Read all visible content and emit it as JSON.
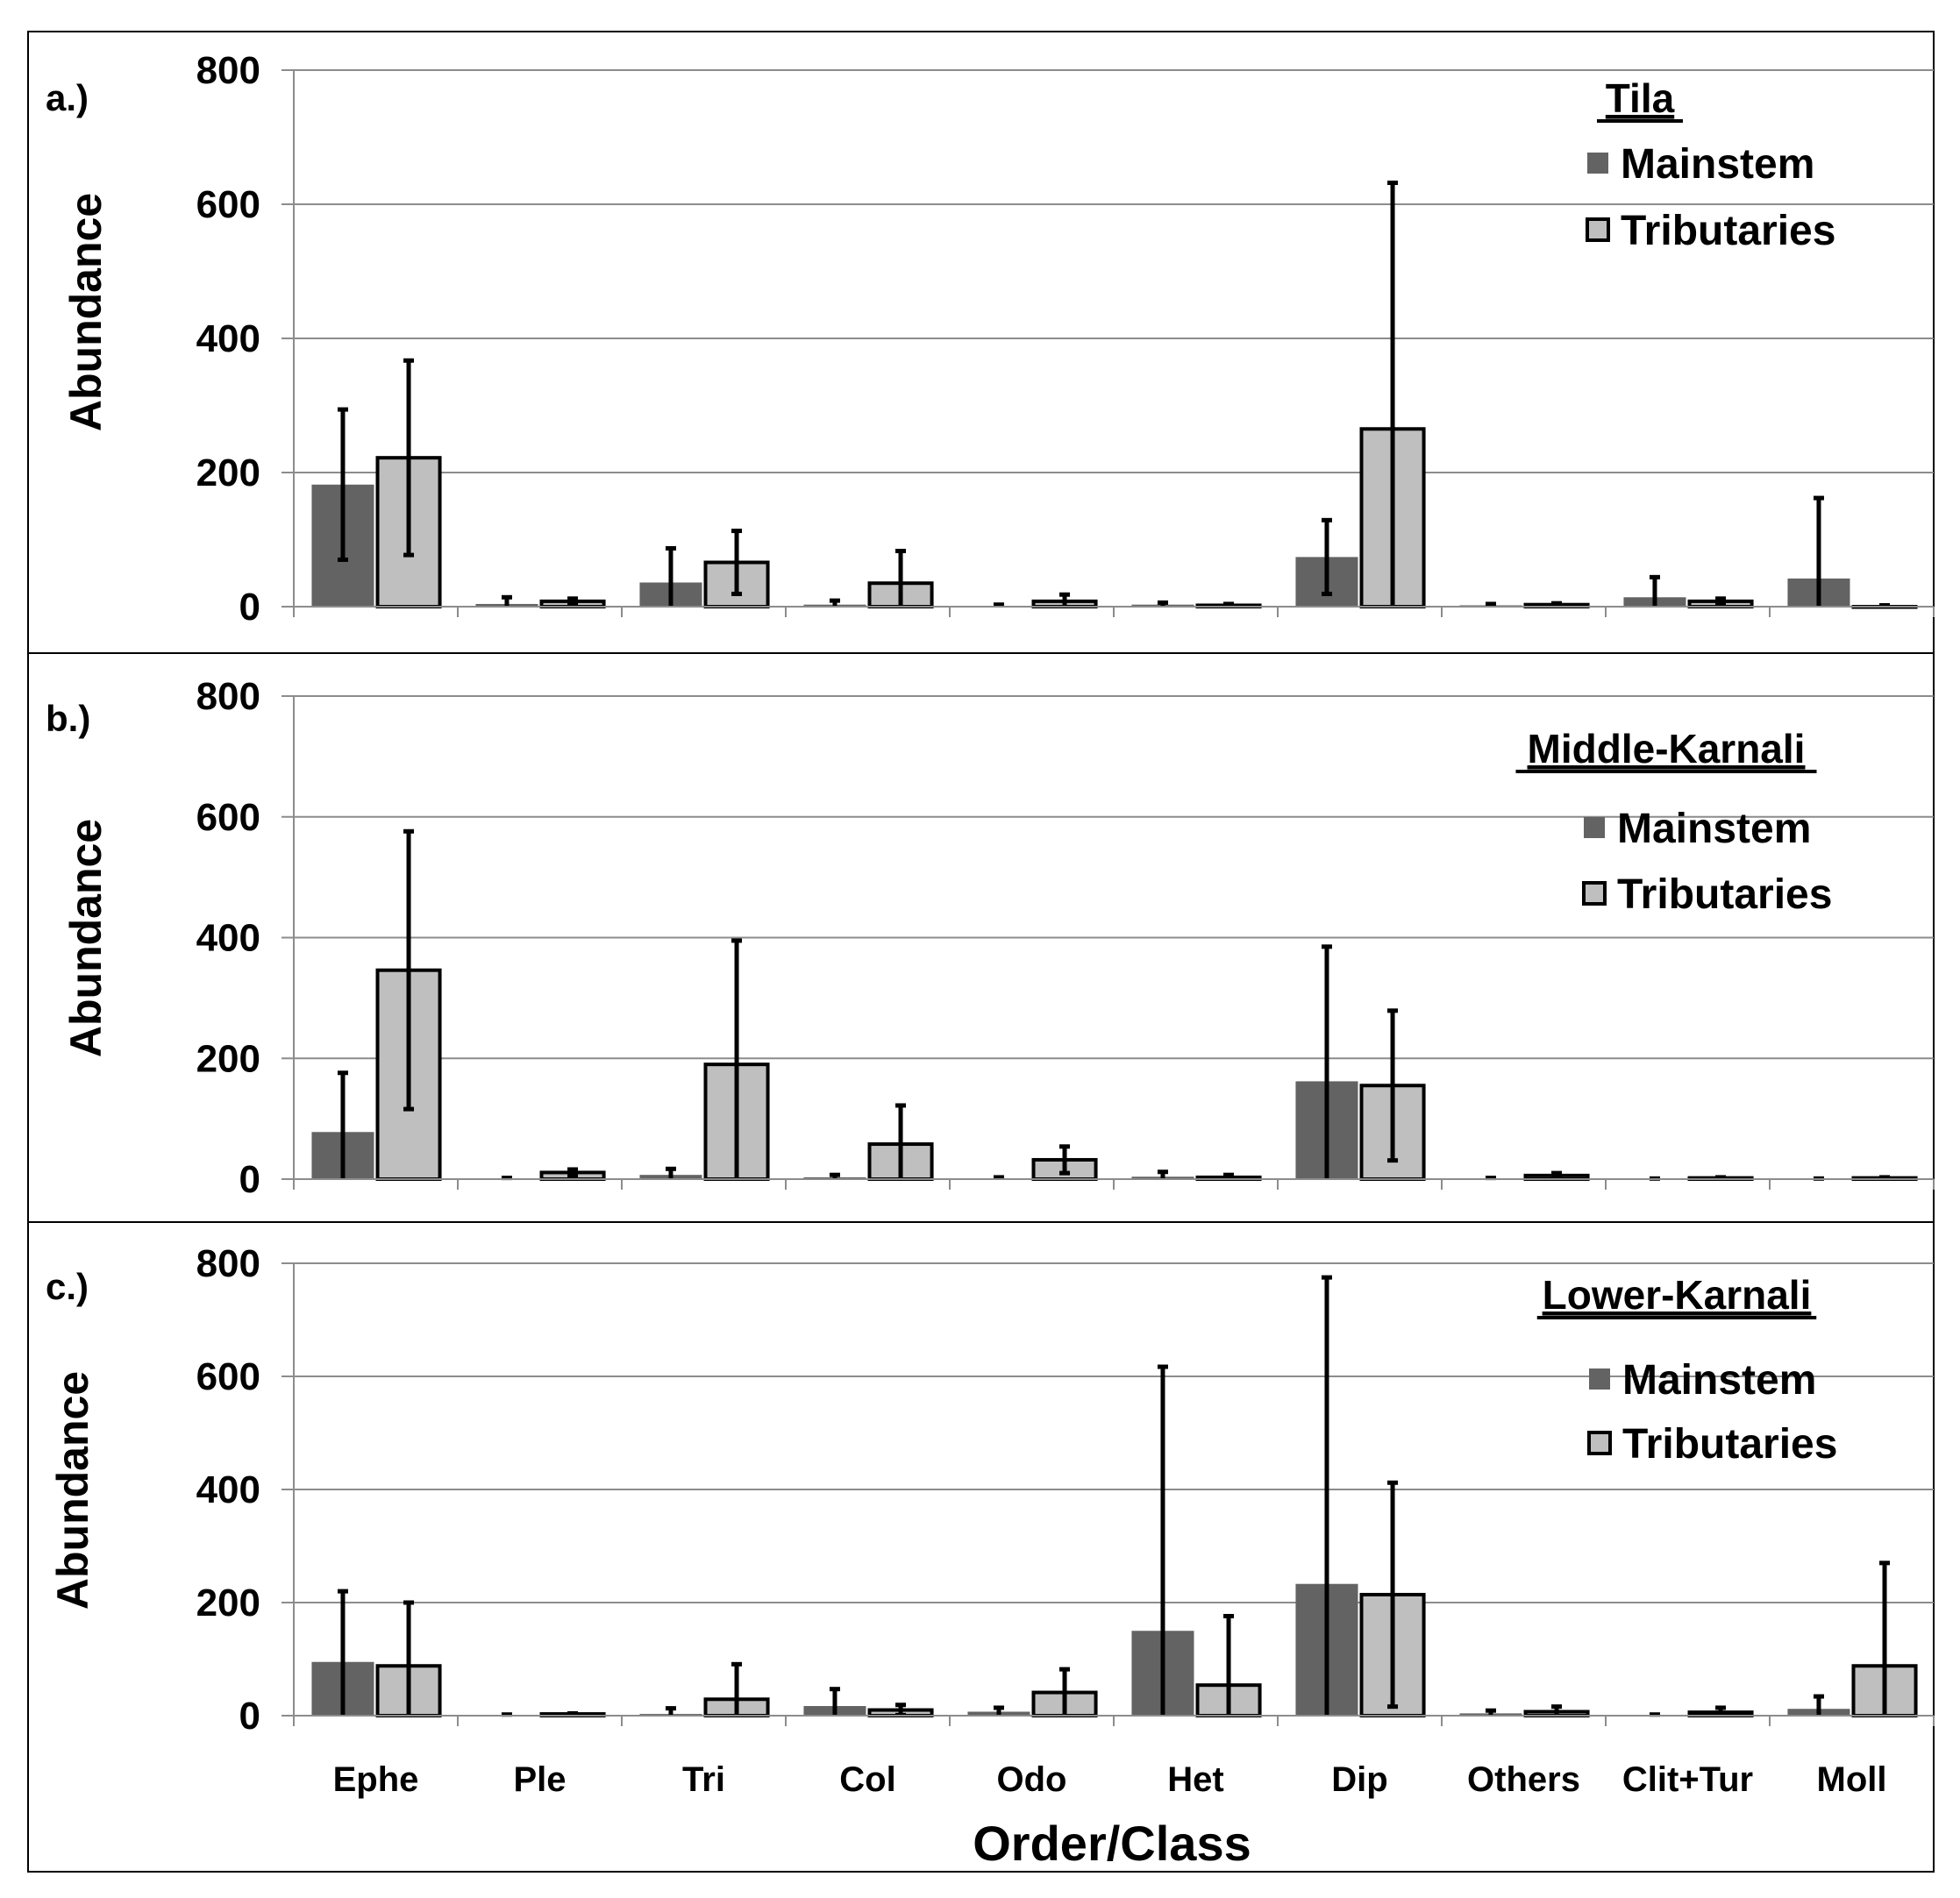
{
  "chart_data": {
    "type": "bar",
    "xlabel": "Order/Class",
    "ylabel": "Abundance",
    "ylim": [
      0,
      800
    ],
    "yticks": [
      0,
      200,
      400,
      600,
      800
    ],
    "categories": [
      "Ephe",
      "Ple",
      "Tri",
      "Col",
      "Odo",
      "Het",
      "Dip",
      "Others",
      "Clit+Tur",
      "Moll"
    ],
    "series_names": [
      "Mainstem",
      "Tributaries"
    ],
    "colors": {
      "Mainstem": "#636363",
      "Tributaries": "#bfbfbf"
    },
    "panels": [
      {
        "label": "a.)",
        "title": "Tila",
        "legend": "top-right",
        "series": [
          {
            "name": "Mainstem",
            "values": [
              182,
              4,
              36,
              3,
              1,
              3,
              74,
              2,
              14,
              42
            ],
            "errors": [
              112,
              10,
              51,
              6,
              2,
              3,
              55,
              2,
              30,
              120
            ]
          },
          {
            "name": "Tributaries",
            "values": [
              222,
              8,
              66,
              35,
              8,
              2,
              265,
              3,
              8,
              0
            ],
            "errors": [
              145,
              4,
              47,
              48,
              10,
              2,
              367,
              2,
              4,
              2
            ]
          }
        ]
      },
      {
        "label": "b.)",
        "title": "Middle-Karnali",
        "legend": "top-right",
        "series": [
          {
            "name": "Mainstem",
            "values": [
              78,
              1,
              7,
              3,
              1,
              4,
              162,
              1,
              0,
              0
            ],
            "errors": [
              98,
              1,
              10,
              4,
              2,
              8,
              223,
              1,
              1,
              1
            ]
          },
          {
            "name": "Tributaries",
            "values": [
              346,
              11,
              190,
              58,
              32,
              3,
              155,
              6,
              2,
              2
            ],
            "errors": [
              230,
              5,
              205,
              64,
              22,
              4,
              124,
              4,
              1,
              1
            ]
          }
        ]
      },
      {
        "label": "c.)",
        "title": "Lower-Karnali",
        "legend": "top-right",
        "series": [
          {
            "name": "Mainstem",
            "values": [
              95,
              1,
              3,
              17,
              7,
              150,
              233,
              4,
              1,
              12
            ],
            "errors": [
              125,
              1,
              10,
              30,
              7,
              467,
              542,
              5,
              1,
              22
            ]
          },
          {
            "name": "Tributaries",
            "values": [
              88,
              3,
              29,
              10,
              41,
              54,
              214,
              7,
              6,
              88
            ],
            "errors": [
              112,
              1,
              62,
              9,
              41,
              122,
              198,
              9,
              8,
              182
            ]
          }
        ]
      }
    ]
  }
}
